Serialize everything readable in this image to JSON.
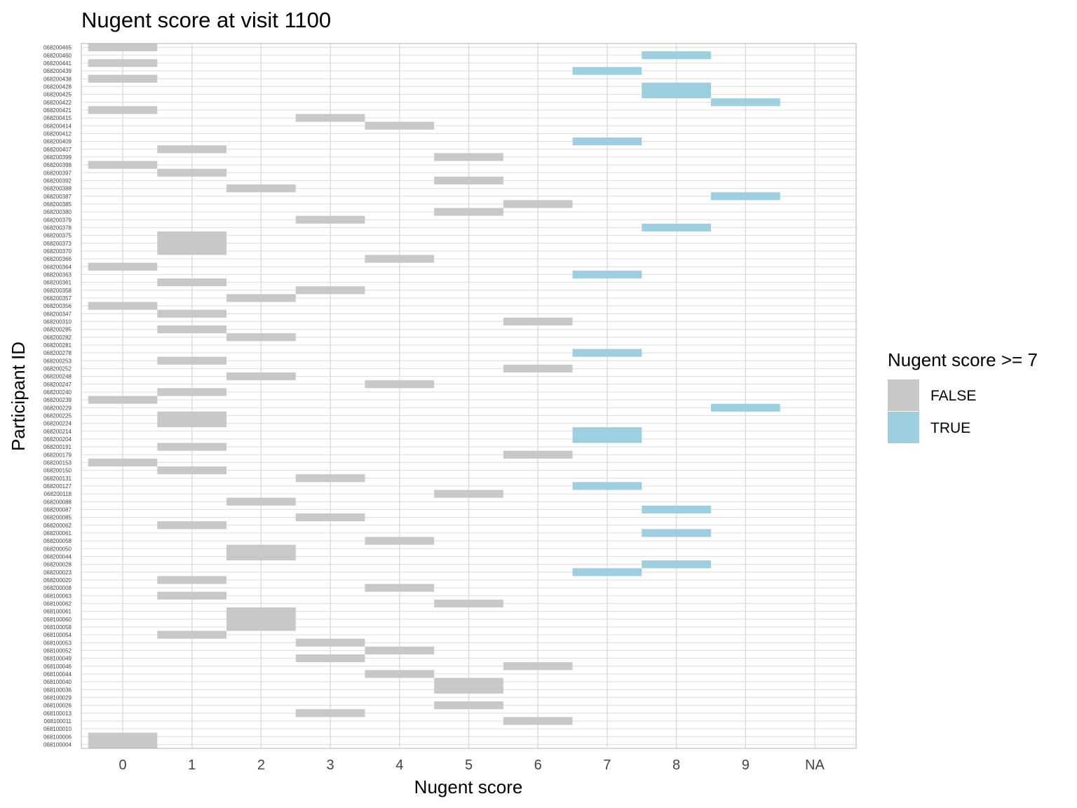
{
  "chart_data": {
    "type": "heatmap",
    "title": "Nugent score at visit 1100",
    "xlabel": "Nugent score",
    "ylabel": "Participant ID",
    "x_categories": [
      "0",
      "1",
      "2",
      "3",
      "4",
      "5",
      "6",
      "7",
      "8",
      "9",
      "NA"
    ],
    "grid": true,
    "legend": {
      "title": "Nugent score >= 7",
      "placement": "right",
      "items": [
        {
          "label": "FALSE",
          "color": "#c8c8c8"
        },
        {
          "label": "TRUE",
          "color": "#9ecfe0"
        }
      ]
    },
    "participants": [
      {
        "id": "068200465",
        "score": "0"
      },
      {
        "id": "068200460",
        "score": "8"
      },
      {
        "id": "068200441",
        "score": "0"
      },
      {
        "id": "068200439",
        "score": "7"
      },
      {
        "id": "068200438",
        "score": "0"
      },
      {
        "id": "068200428",
        "score": "8"
      },
      {
        "id": "068200425",
        "score": "8"
      },
      {
        "id": "068200422",
        "score": "9"
      },
      {
        "id": "068200421",
        "score": "0"
      },
      {
        "id": "068200415",
        "score": "3"
      },
      {
        "id": "068200414",
        "score": "4"
      },
      {
        "id": "068200412",
        "score": null
      },
      {
        "id": "068200409",
        "score": "7"
      },
      {
        "id": "068200407",
        "score": "1"
      },
      {
        "id": "068200399",
        "score": "5"
      },
      {
        "id": "068200398",
        "score": "0"
      },
      {
        "id": "068200397",
        "score": "1"
      },
      {
        "id": "068200392",
        "score": "5"
      },
      {
        "id": "068200388",
        "score": "2"
      },
      {
        "id": "068200387",
        "score": "9"
      },
      {
        "id": "068200385",
        "score": "6"
      },
      {
        "id": "068200380",
        "score": "5"
      },
      {
        "id": "068200379",
        "score": "3"
      },
      {
        "id": "068200378",
        "score": "8"
      },
      {
        "id": "068200375",
        "score": "1"
      },
      {
        "id": "068200373",
        "score": "1"
      },
      {
        "id": "068200370",
        "score": "1"
      },
      {
        "id": "068200366",
        "score": "4"
      },
      {
        "id": "068200364",
        "score": "0"
      },
      {
        "id": "068200363",
        "score": "7"
      },
      {
        "id": "068200361",
        "score": "1"
      },
      {
        "id": "068200358",
        "score": "3"
      },
      {
        "id": "068200357",
        "score": "2"
      },
      {
        "id": "068200356",
        "score": "0"
      },
      {
        "id": "068200347",
        "score": "1"
      },
      {
        "id": "068200310",
        "score": "6"
      },
      {
        "id": "068200285",
        "score": "1"
      },
      {
        "id": "068200282",
        "score": "2"
      },
      {
        "id": "068200281",
        "score": null
      },
      {
        "id": "068200278",
        "score": "7"
      },
      {
        "id": "068200253",
        "score": "1"
      },
      {
        "id": "068200252",
        "score": "6"
      },
      {
        "id": "068200248",
        "score": "2"
      },
      {
        "id": "068200247",
        "score": "4"
      },
      {
        "id": "068200240",
        "score": "1"
      },
      {
        "id": "068200239",
        "score": "0"
      },
      {
        "id": "068200229",
        "score": "9"
      },
      {
        "id": "068200225",
        "score": "1"
      },
      {
        "id": "068200224",
        "score": "1"
      },
      {
        "id": "068200214",
        "score": "7"
      },
      {
        "id": "068200204",
        "score": "7"
      },
      {
        "id": "068200191",
        "score": "1"
      },
      {
        "id": "068200179",
        "score": "6"
      },
      {
        "id": "068200153",
        "score": "0"
      },
      {
        "id": "068200150",
        "score": "1"
      },
      {
        "id": "068200131",
        "score": "3"
      },
      {
        "id": "068200127",
        "score": "7"
      },
      {
        "id": "068200118",
        "score": "5"
      },
      {
        "id": "068200088",
        "score": "2"
      },
      {
        "id": "068200087",
        "score": "8"
      },
      {
        "id": "068200085",
        "score": "3"
      },
      {
        "id": "068200062",
        "score": "1"
      },
      {
        "id": "068200061",
        "score": "8"
      },
      {
        "id": "068200058",
        "score": "4"
      },
      {
        "id": "068200050",
        "score": "2"
      },
      {
        "id": "068200044",
        "score": "2"
      },
      {
        "id": "068200028",
        "score": "8"
      },
      {
        "id": "068200023",
        "score": "7"
      },
      {
        "id": "068200020",
        "score": "1"
      },
      {
        "id": "068200008",
        "score": "4"
      },
      {
        "id": "068100063",
        "score": "1"
      },
      {
        "id": "068100062",
        "score": "5"
      },
      {
        "id": "068100061",
        "score": "2"
      },
      {
        "id": "068100060",
        "score": "2"
      },
      {
        "id": "068100058",
        "score": "2"
      },
      {
        "id": "068100054",
        "score": "1"
      },
      {
        "id": "068100053",
        "score": "3"
      },
      {
        "id": "068100052",
        "score": "4"
      },
      {
        "id": "068100049",
        "score": "3"
      },
      {
        "id": "068100046",
        "score": "6"
      },
      {
        "id": "068100044",
        "score": "4"
      },
      {
        "id": "068100040",
        "score": "5"
      },
      {
        "id": "068100036",
        "score": "5"
      },
      {
        "id": "068100029",
        "score": null
      },
      {
        "id": "068100026",
        "score": "5"
      },
      {
        "id": "068100013",
        "score": "3"
      },
      {
        "id": "068100011",
        "score": "6"
      },
      {
        "id": "068100010",
        "score": null
      },
      {
        "id": "068100006",
        "score": "0"
      },
      {
        "id": "068100004",
        "score": "0"
      }
    ]
  }
}
